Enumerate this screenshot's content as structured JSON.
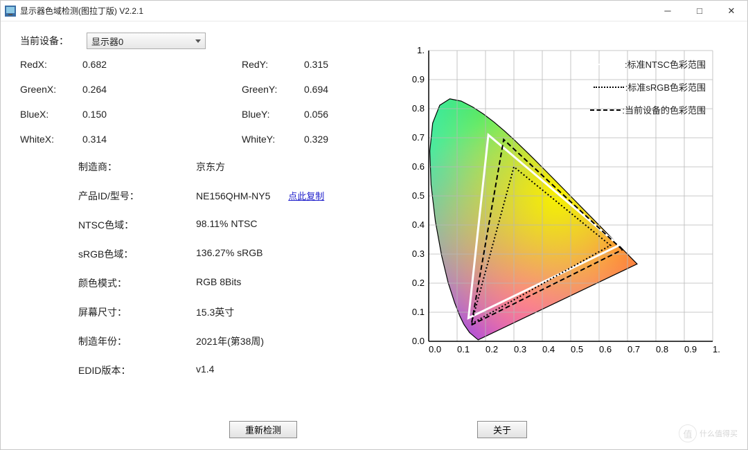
{
  "window": {
    "title": "显示器色域检测(图拉丁版) V2.2.1"
  },
  "device": {
    "label": "当前设备：",
    "selected": "显示器0"
  },
  "coords": {
    "RedX": {
      "label": "RedX:",
      "value": "0.682"
    },
    "RedY": {
      "label": "RedY:",
      "value": "0.315"
    },
    "GreenX": {
      "label": "GreenX:",
      "value": "0.264"
    },
    "GreenY": {
      "label": "GreenY:",
      "value": "0.694"
    },
    "BlueX": {
      "label": "BlueX:",
      "value": "0.150"
    },
    "BlueY": {
      "label": "BlueY:",
      "value": "0.056"
    },
    "WhiteX": {
      "label": "WhiteX:",
      "value": "0.314"
    },
    "WhiteY": {
      "label": "WhiteY:",
      "value": "0.329"
    }
  },
  "info": {
    "manufacturer": {
      "label": "制造商：",
      "value": "京东方"
    },
    "model": {
      "label": "产品ID/型号：",
      "value": "NE156QHM-NY5",
      "copy": "点此复制"
    },
    "ntsc": {
      "label": "NTSC色域：",
      "value": "98.11% NTSC"
    },
    "srgb": {
      "label": "sRGB色域：",
      "value": "136.27% sRGB"
    },
    "colormode": {
      "label": "颜色模式：",
      "value": "RGB 8Bits"
    },
    "size": {
      "label": "屏幕尺寸：",
      "value": "15.3英寸"
    },
    "mfgdate": {
      "label": "制造年份：",
      "value": "2021年(第38周)"
    },
    "edid": {
      "label": "EDID版本：",
      "value": "v1.4"
    }
  },
  "buttons": {
    "redetect": "重新检测",
    "about": "关于"
  },
  "chart": {
    "xlim": [
      0.0,
      1.0
    ],
    "ylim": [
      0.0,
      1.0
    ],
    "ticks": [
      "0.0",
      "0.1",
      "0.2",
      "0.3",
      "0.4",
      "0.5",
      "0.6",
      "0.7",
      "0.8",
      "0.9",
      "1."
    ],
    "tick_fontsize": 13,
    "grid_color": "#b8b8b8",
    "axis_color": "#000000",
    "background": "#ffffff",
    "locus": [
      [
        0.1741,
        0.005
      ],
      [
        0.144,
        0.0297
      ],
      [
        0.1241,
        0.0578
      ],
      [
        0.1096,
        0.0868
      ],
      [
        0.0913,
        0.1327
      ],
      [
        0.0687,
        0.2007
      ],
      [
        0.0454,
        0.295
      ],
      [
        0.0235,
        0.4127
      ],
      [
        0.0082,
        0.5384
      ],
      [
        0.0039,
        0.6548
      ],
      [
        0.0139,
        0.7502
      ],
      [
        0.0389,
        0.812
      ],
      [
        0.0743,
        0.8338
      ],
      [
        0.1142,
        0.8262
      ],
      [
        0.1547,
        0.8059
      ],
      [
        0.1929,
        0.7816
      ],
      [
        0.2296,
        0.7543
      ],
      [
        0.2658,
        0.7243
      ],
      [
        0.3016,
        0.6923
      ],
      [
        0.3373,
        0.6589
      ],
      [
        0.3731,
        0.6245
      ],
      [
        0.4087,
        0.5896
      ],
      [
        0.4441,
        0.5547
      ],
      [
        0.4788,
        0.5202
      ],
      [
        0.5125,
        0.4866
      ],
      [
        0.5448,
        0.4544
      ],
      [
        0.5752,
        0.4242
      ],
      [
        0.6029,
        0.3965
      ],
      [
        0.627,
        0.3725
      ],
      [
        0.6482,
        0.3514
      ],
      [
        0.6658,
        0.334
      ],
      [
        0.6801,
        0.3197
      ],
      [
        0.6915,
        0.3083
      ],
      [
        0.7006,
        0.2993
      ],
      [
        0.714,
        0.2859
      ],
      [
        0.726,
        0.274
      ],
      [
        0.734,
        0.266
      ]
    ],
    "ntsc_triangle": {
      "pts": [
        [
          0.67,
          0.33
        ],
        [
          0.21,
          0.71
        ],
        [
          0.14,
          0.08
        ]
      ],
      "stroke": "#ffffff",
      "width": 3,
      "dash": ""
    },
    "srgb_triangle": {
      "pts": [
        [
          0.64,
          0.33
        ],
        [
          0.3,
          0.6
        ],
        [
          0.15,
          0.06
        ]
      ],
      "stroke": "#000000",
      "width": 2,
      "dash": "2 3"
    },
    "device_triangle": {
      "pts": [
        [
          0.682,
          0.315
        ],
        [
          0.264,
          0.694
        ],
        [
          0.15,
          0.056
        ]
      ],
      "stroke": "#000000",
      "width": 2,
      "dash": "7 4"
    },
    "legend": {
      "ntsc": ":标准NTSC色彩范围",
      "srgb": ":标准sRGB色彩范围",
      "device": ":当前设备的色彩范围"
    },
    "gradient_stops": {
      "red": "#ff2020",
      "green": "#00e040",
      "blue": "#2030ff",
      "cyan": "#00e8e8",
      "magenta": "#ff40e0",
      "yellow": "#f8f000",
      "white": "#ffffff"
    }
  },
  "watermark": {
    "text": "什么值得买",
    "badge": "值"
  }
}
